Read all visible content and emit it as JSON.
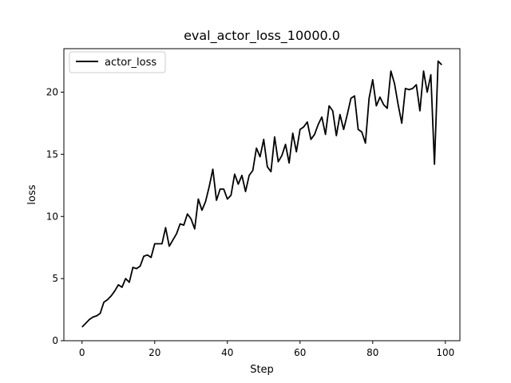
{
  "chart_data": {
    "type": "line",
    "title": "eval_actor_loss_10000.0",
    "xlabel": "Step",
    "ylabel": "loss",
    "xlim": [
      -5,
      104
    ],
    "ylim": [
      0,
      23.5
    ],
    "xticks": [
      0,
      20,
      40,
      60,
      80,
      100
    ],
    "yticks": [
      0,
      5,
      10,
      15,
      20
    ],
    "grid": false,
    "legend": "upper-left",
    "series": [
      {
        "name": "actor_loss",
        "color": "#000000",
        "x": [
          0,
          1,
          2,
          3,
          4,
          5,
          6,
          7,
          8,
          9,
          10,
          11,
          12,
          13,
          14,
          15,
          16,
          17,
          18,
          19,
          20,
          21,
          22,
          23,
          24,
          25,
          26,
          27,
          28,
          29,
          30,
          31,
          32,
          33,
          34,
          35,
          36,
          37,
          38,
          39,
          40,
          41,
          42,
          43,
          44,
          45,
          46,
          47,
          48,
          49,
          50,
          51,
          52,
          53,
          54,
          55,
          56,
          57,
          58,
          59,
          60,
          61,
          62,
          63,
          64,
          65,
          66,
          67,
          68,
          69,
          70,
          71,
          72,
          73,
          74,
          75,
          76,
          77,
          78,
          79,
          80,
          81,
          82,
          83,
          84,
          85,
          86,
          87,
          88,
          89,
          90,
          91,
          92,
          93,
          94,
          95,
          96,
          97,
          98,
          99
        ],
        "values": [
          1.1,
          1.4,
          1.7,
          1.9,
          2.0,
          2.2,
          3.1,
          3.3,
          3.6,
          4.0,
          4.5,
          4.3,
          5.0,
          4.7,
          5.9,
          5.8,
          6.0,
          6.8,
          6.9,
          6.7,
          7.8,
          7.8,
          7.8,
          9.1,
          7.6,
          8.1,
          8.6,
          9.4,
          9.3,
          10.2,
          9.8,
          9.0,
          11.4,
          10.5,
          11.2,
          12.4,
          13.8,
          11.3,
          12.2,
          12.2,
          11.4,
          11.7,
          13.4,
          12.6,
          13.3,
          12.0,
          13.3,
          13.7,
          15.5,
          14.8,
          16.2,
          14.0,
          13.6,
          16.4,
          14.4,
          14.9,
          15.8,
          14.3,
          16.7,
          15.2,
          17.0,
          17.2,
          17.6,
          16.2,
          16.6,
          17.4,
          18.0,
          16.6,
          18.9,
          18.5,
          16.5,
          18.2,
          17.0,
          18.2,
          19.5,
          19.7,
          17.0,
          16.8,
          15.9,
          19.5,
          21.0,
          18.9,
          19.6,
          19.0,
          18.7,
          21.7,
          20.7,
          19.0,
          17.5,
          20.3,
          20.2,
          20.3,
          20.6,
          18.5,
          21.7,
          20.0,
          21.4,
          14.2,
          22.5,
          22.2
        ]
      }
    ]
  }
}
